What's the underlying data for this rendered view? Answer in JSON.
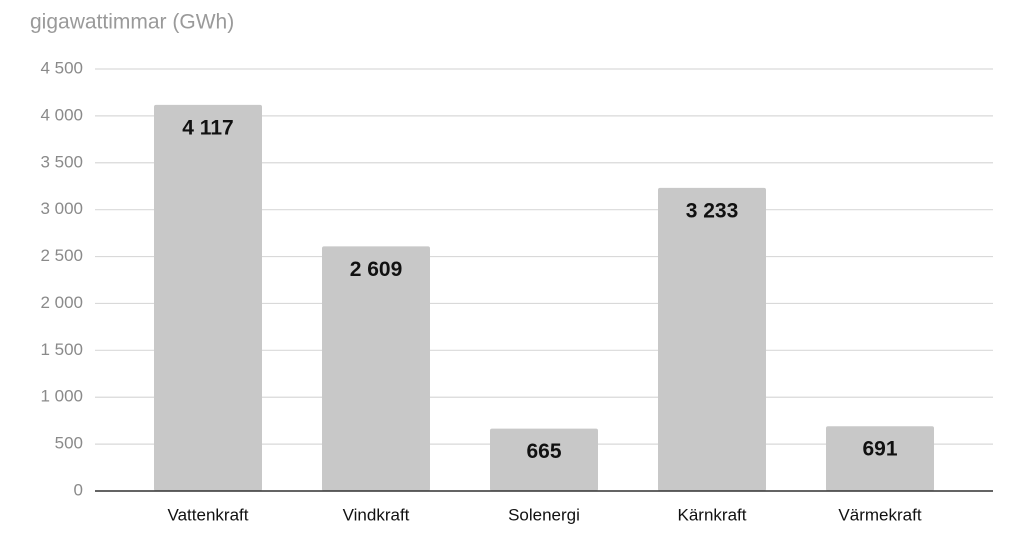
{
  "chart_data": {
    "type": "bar",
    "y_axis_title": "gigawattimmar (GWh)",
    "categories": [
      "Vattenkraft",
      "Vindkraft",
      "Solenergi",
      "Kärnkraft",
      "Värmekraft"
    ],
    "values": [
      4117,
      2609,
      665,
      3233,
      691
    ],
    "value_labels": [
      "4 117",
      "2 609",
      "665",
      "3 233",
      "691"
    ],
    "color": "#c8c8c8",
    "ylim": [
      0,
      4500
    ],
    "yticks": [
      0,
      500,
      {
        "value": 1000,
        "label": "1 000"
      },
      {
        "value": 1500,
        "label": "1 500"
      },
      {
        "value": 2000,
        "label": "2 000"
      },
      {
        "value": 2500,
        "label": "2 500"
      },
      {
        "value": 3000,
        "label": "3 000"
      },
      {
        "value": 3500,
        "label": "3 500"
      },
      {
        "value": 4000,
        "label": "4 000"
      },
      {
        "value": 4500,
        "label": "4 500"
      }
    ],
    "grid": true
  }
}
